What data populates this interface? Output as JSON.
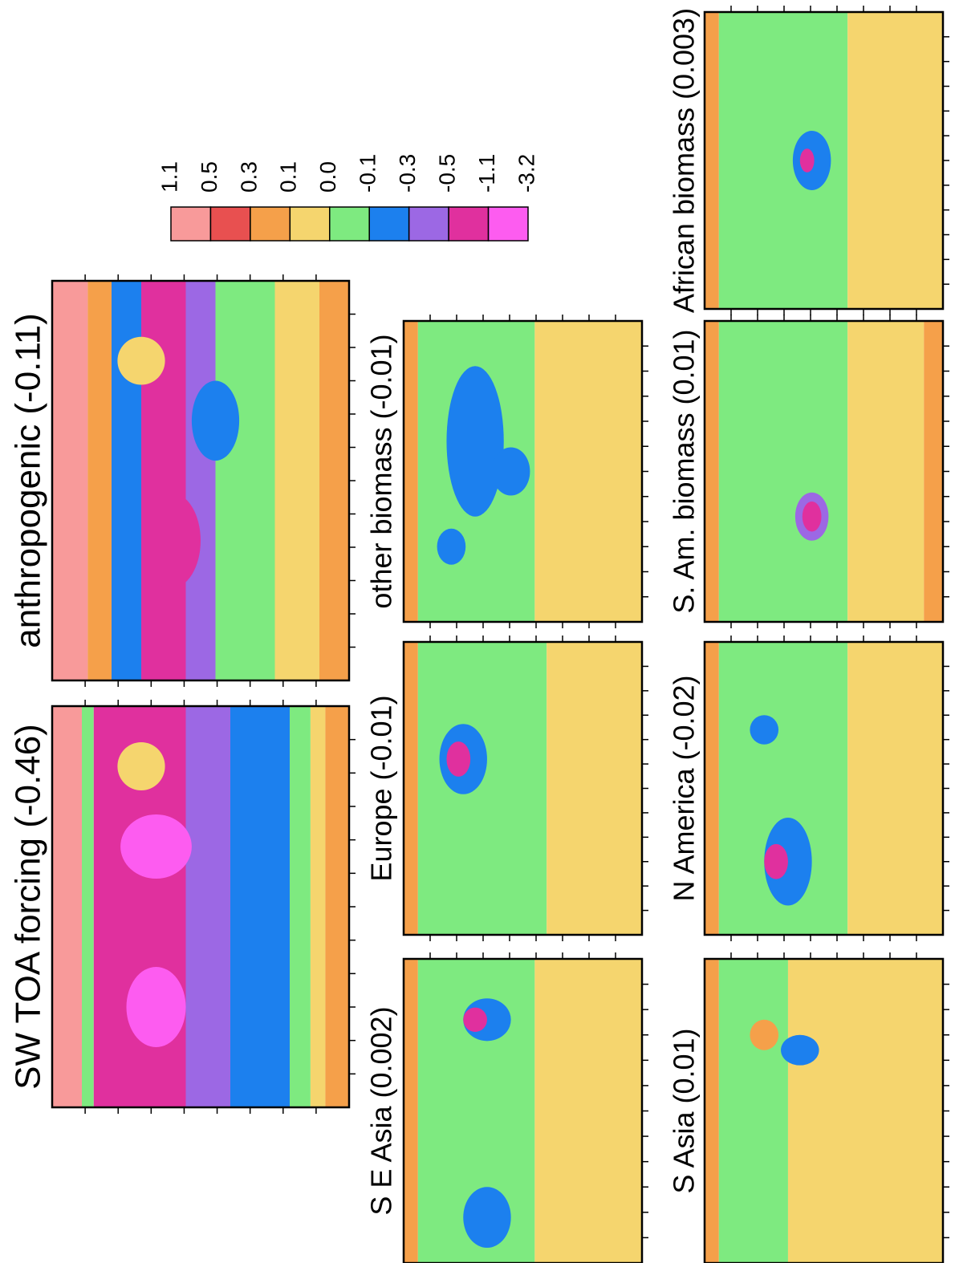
{
  "panels": [
    {
      "title": "SW TOA forcing (-0.46)"
    },
    {
      "title": "anthropogenic (-0.11)"
    },
    {
      "title": "S E Asia (0.002)"
    },
    {
      "title": "Europe (-0.01)"
    },
    {
      "title": "other biomass (-0.01)"
    },
    {
      "title": "S Asia (0.01)"
    },
    {
      "title": "N America (-0.02)"
    },
    {
      "title": "S. Am. biomass (0.01)"
    },
    {
      "title": "African biomass (0.003)"
    }
  ],
  "colorbar": {
    "labels": [
      "1.1",
      "0.5",
      "0.3",
      "0.1",
      "0.0",
      "-0.1",
      "-0.3",
      "-0.5",
      "-1.1",
      "-3.2"
    ],
    "colors": [
      "#f89a9a",
      "#e85050",
      "#f5a04a",
      "#f5d56e",
      "#7eea80",
      "#1c80ee",
      "#9c68e4",
      "#e0309e",
      "#fd5cf0"
    ]
  }
}
